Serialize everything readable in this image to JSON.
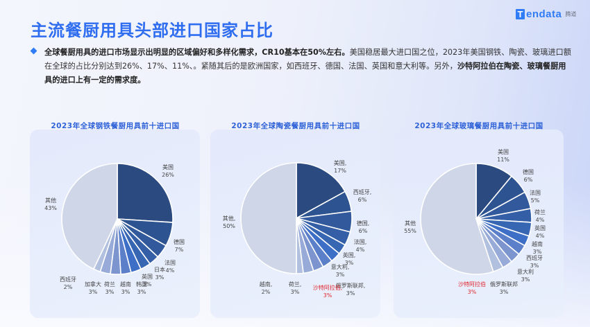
{
  "header": {
    "title": "主流餐厨用具头部进口国家占比",
    "logo": {
      "mark": "T",
      "word": "endata",
      "cn": "腾道"
    }
  },
  "summary": {
    "bold_part": "全球餐厨用具的进口市场显示出明显的区域偏好和多样化需求，CR10基本在50%左右。",
    "normal_part_1": "美国稳居最大进口国之位，2023年美国钢铁、陶瓷、玻璃进口额在全球的占比分别达到26%、17%、11%、。紧随其后的是欧洲国家，如西班牙、德国、法国、英国和意大利等。",
    "normal_part_2": "另外，",
    "bold_part_2": "沙特阿拉伯在陶瓷、玻璃餐厨用具的进口上有一定的需求度。"
  },
  "colors": {
    "title": "#2f6df0",
    "chart_title": "#2f62d8",
    "highlight_label": "#e0262d",
    "other_slice": "#cfd6e8",
    "slice_palette": [
      "#2b4a80",
      "#2e5391",
      "#31599c",
      "#345fa6",
      "#3766b2",
      "#3d6fc6",
      "#5b7fc8",
      "#7c95cf",
      "#98abd8",
      "#b2c0e0"
    ]
  },
  "chart_data": [
    {
      "type": "pie",
      "title": "2023年全球钢铁餐厨用具前十进口国",
      "categories": [
        "美国",
        "德国",
        "法国",
        "日本",
        "英国",
        "韩国",
        "越南",
        "荷兰",
        "加拿大",
        "西班牙",
        "其他"
      ],
      "values": [
        26,
        7,
        4,
        3,
        3,
        3,
        3,
        3,
        3,
        2,
        43
      ],
      "labels": [
        "美国 26%",
        "德国 7%",
        "法国 4%",
        "日本 3%",
        "英国 3%",
        "韩国 3%",
        "越南 3%",
        "荷兰 3%",
        "加拿大 3%",
        "西班牙 2%",
        "其他 43%"
      ],
      "unit": "%",
      "start_angle": "12 o'clock, clockwise"
    },
    {
      "type": "pie",
      "title": "2023年全球陶瓷餐厨用具前十进口国",
      "categories": [
        "美国",
        "西班牙",
        "德国",
        "法国",
        "英国",
        "意大利",
        "俄罗斯联邦",
        "沙特阿拉伯",
        "荷兰",
        "越南",
        "其他"
      ],
      "values": [
        17,
        6,
        6,
        4,
        3,
        3,
        3,
        3,
        3,
        2,
        50
      ],
      "labels": [
        "美国, 17%",
        "西班牙, 6%",
        "德国, 6%",
        "法国, 4%",
        "英国, 3%",
        "意大利, 3%",
        "俄罗斯联邦, 3%",
        "沙特阿拉伯, 3%",
        "荷兰, 3%",
        "越南, 2%",
        "其他, 50%"
      ],
      "highlight": "沙特阿拉伯",
      "unit": "%",
      "start_angle": "12 o'clock, clockwise"
    },
    {
      "type": "pie",
      "title": "2023年全球玻璃餐厨用具前十进口国",
      "categories": [
        "美国",
        "德国",
        "法国",
        "荷兰",
        "英国",
        "越南",
        "西班牙",
        "意大利",
        "俄罗斯联邦",
        "沙特阿拉伯",
        "其他"
      ],
      "values": [
        11,
        6,
        5,
        4,
        4,
        3,
        3,
        3,
        3,
        3,
        55
      ],
      "labels": [
        "美国 11%",
        "德国 6%",
        "法国 5%",
        "荷兰 4%",
        "英国 4%",
        "越南 3%",
        "西班牙 3%",
        "意大利 3%",
        "俄罗斯联邦 3%",
        "沙特阿拉伯 3%",
        "其他 55%"
      ],
      "highlight": "沙特阿拉伯",
      "unit": "%",
      "start_angle": "12 o'clock, clockwise"
    }
  ]
}
